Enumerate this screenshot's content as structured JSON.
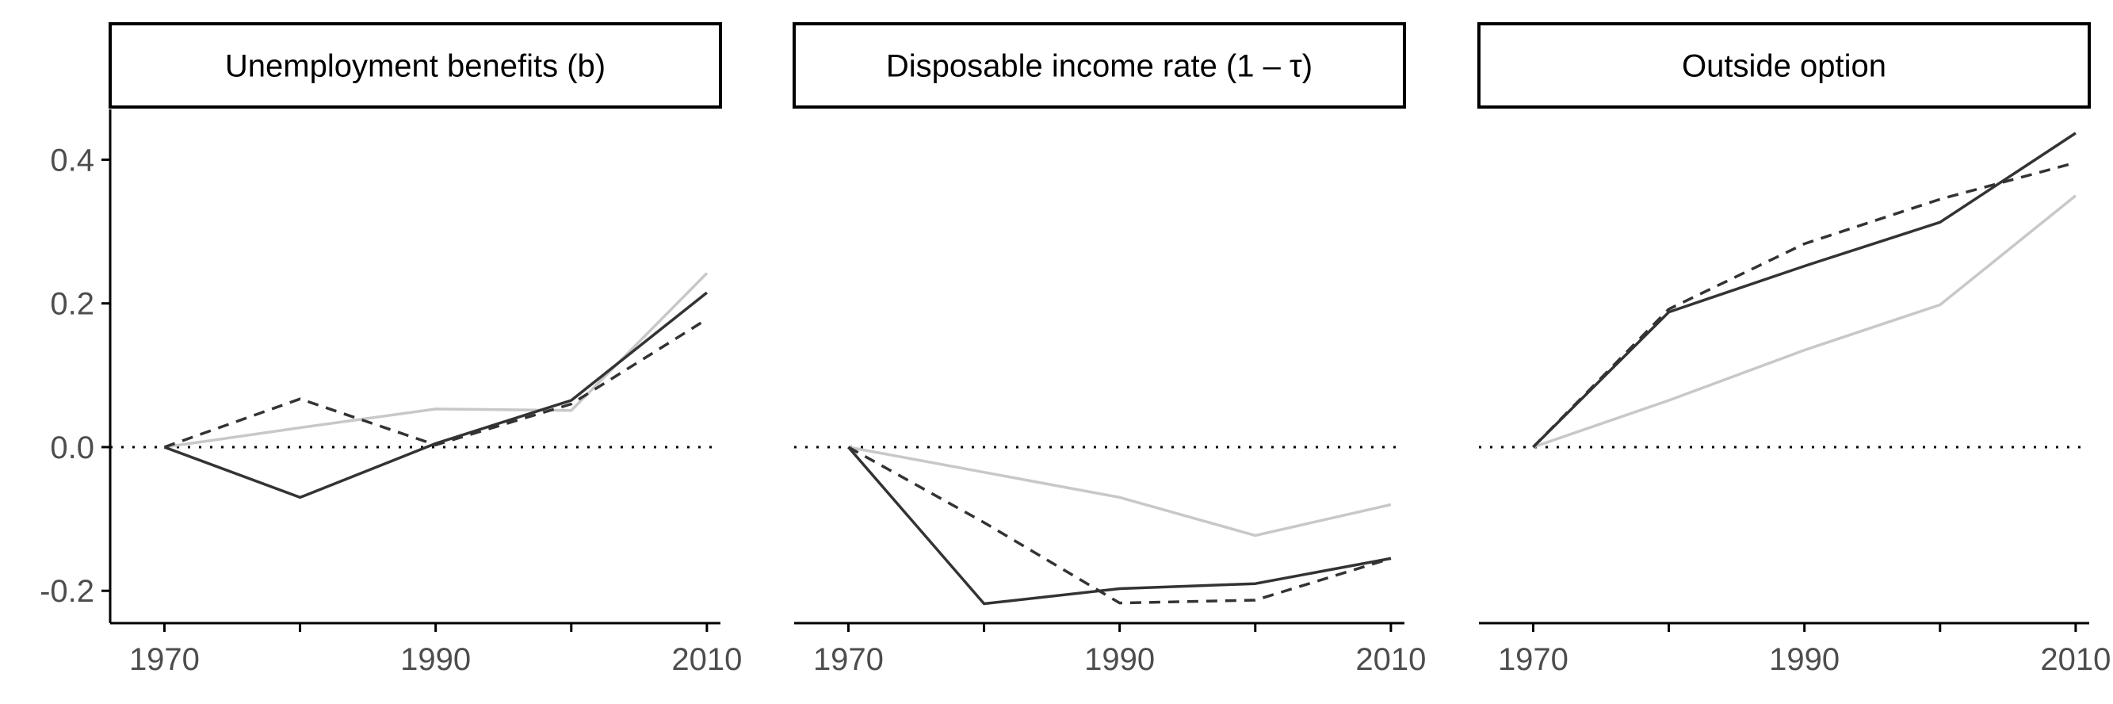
{
  "chart_data": {
    "type": "line",
    "facets": [
      {
        "strip_label": "Unemployment benefits (b)",
        "series": [
          {
            "style": "solid-dark",
            "color": "#333333",
            "x": [
              1970,
              1980,
              1990,
              2000,
              2010
            ],
            "y": [
              0.0,
              -0.07,
              0.005,
              0.065,
              0.215
            ]
          },
          {
            "style": "dashed-dark",
            "color": "#333333",
            "x": [
              1970,
              1980,
              1990,
              2000,
              2010
            ],
            "y": [
              0.0,
              0.067,
              0.003,
              0.06,
              0.178
            ]
          },
          {
            "style": "solid-light",
            "color": "#c8c8c8",
            "x": [
              1970,
              1980,
              1990,
              2000,
              2010
            ],
            "y": [
              0.0,
              0.027,
              0.053,
              0.051,
              0.242
            ]
          }
        ]
      },
      {
        "strip_label": "Disposable income rate (1 – τ)",
        "series": [
          {
            "style": "solid-dark",
            "color": "#333333",
            "x": [
              1970,
              1980,
              1990,
              2000,
              2010
            ],
            "y": [
              0.0,
              -0.218,
              -0.197,
              -0.19,
              -0.155
            ]
          },
          {
            "style": "dashed-dark",
            "color": "#333333",
            "x": [
              1970,
              1980,
              1990,
              2000,
              2010
            ],
            "y": [
              0.0,
              -0.105,
              -0.217,
              -0.213,
              -0.155
            ]
          },
          {
            "style": "solid-light",
            "color": "#c8c8c8",
            "x": [
              1970,
              1980,
              1990,
              2000,
              2010
            ],
            "y": [
              0.0,
              -0.035,
              -0.07,
              -0.123,
              -0.08
            ]
          }
        ]
      },
      {
        "strip_label": "Outside option",
        "series": [
          {
            "style": "solid-dark",
            "color": "#333333",
            "x": [
              1970,
              1980,
              1990,
              2000,
              2010
            ],
            "y": [
              0.0,
              0.188,
              0.252,
              0.313,
              0.437
            ]
          },
          {
            "style": "dashed-dark",
            "color": "#333333",
            "x": [
              1970,
              1980,
              1990,
              2000,
              2010
            ],
            "y": [
              0.0,
              0.192,
              0.283,
              0.345,
              0.396
            ]
          },
          {
            "style": "solid-light",
            "color": "#c8c8c8",
            "x": [
              1970,
              1980,
              1990,
              2000,
              2010
            ],
            "y": [
              0.0,
              0.065,
              0.135,
              0.198,
              0.35
            ]
          }
        ]
      }
    ],
    "x_ticks": [
      1970,
      1980,
      1990,
      2000,
      2010
    ],
    "x_tick_labels": [
      "1970",
      "",
      "1990",
      "",
      "2010"
    ],
    "y_ticks": [
      0.4,
      0.2,
      0.0,
      -0.2
    ],
    "y_tick_labels": [
      "0.4",
      "0.2",
      "0.0",
      "-0.2"
    ],
    "xlim": [
      1966,
      2011
    ],
    "ylim": [
      -0.245,
      0.47
    ],
    "reference_line": {
      "y": 0.0,
      "style": "dotted"
    },
    "grid": false,
    "legend": "none",
    "title": "",
    "xlabel": "",
    "ylabel": ""
  }
}
